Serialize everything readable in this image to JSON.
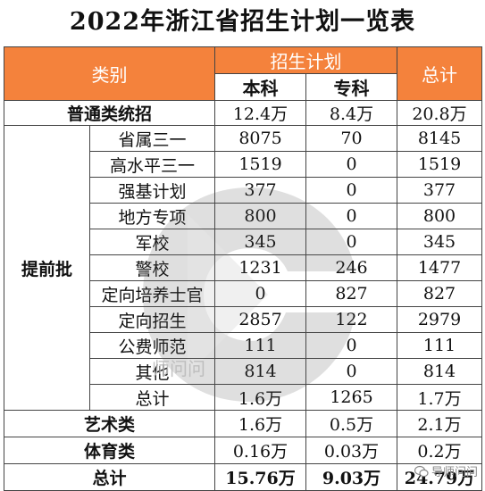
{
  "title": "2022年浙江省招生计划一览表",
  "header": {
    "category": "类别",
    "plan": "招生计划",
    "benke": "本科",
    "zhuanke": "专科",
    "total": "总计"
  },
  "rows": {
    "putong": {
      "label": "普通类统招",
      "benke": "12.4万",
      "zhuanke": "8.4万",
      "total": "20.8万"
    },
    "tiqian_label": "提前批",
    "tiqian": [
      {
        "label": "省属三一",
        "benke": "8075",
        "zhuanke": "70",
        "total": "8145"
      },
      {
        "label": "高水平三一",
        "benke": "1519",
        "zhuanke": "0",
        "total": "1519"
      },
      {
        "label": "强基计划",
        "benke": "377",
        "zhuanke": "0",
        "total": "377"
      },
      {
        "label": "地方专项",
        "benke": "800",
        "zhuanke": "0",
        "total": "800"
      },
      {
        "label": "军校",
        "benke": "345",
        "zhuanke": "0",
        "total": "345"
      },
      {
        "label": "警校",
        "benke": "1231",
        "zhuanke": "246",
        "total": "1477"
      },
      {
        "label": "定向培养士官",
        "benke": "0",
        "zhuanke": "827",
        "total": "827"
      },
      {
        "label": "定向招生",
        "benke": "2857",
        "zhuanke": "122",
        "total": "2979"
      },
      {
        "label": "公费师范",
        "benke": "111",
        "zhuanke": "0",
        "total": "111"
      },
      {
        "label": "其他",
        "benke": "814",
        "zhuanke": "0",
        "total": "814"
      },
      {
        "label": "总计",
        "benke": "1.6万",
        "zhuanke": "1265",
        "total": "1.7万"
      }
    ],
    "yishu": {
      "label": "艺术类",
      "benke": "1.6万",
      "zhuanke": "0.5万",
      "total": "2.1万"
    },
    "tiyu": {
      "label": "体育类",
      "benke": "0.16万",
      "zhuanke": "0.03万",
      "total": "0.2万"
    },
    "zongji": {
      "label": "总计",
      "benke": "15.76万",
      "zhuanke": "9.03万",
      "total": "24.79万"
    }
  },
  "watermark_text": "师问问",
  "brand": {
    "label": "导师问问",
    "icon": "wechat-icon"
  },
  "colors": {
    "header_bg": "#f4823c",
    "header_text": "#ffffff"
  }
}
